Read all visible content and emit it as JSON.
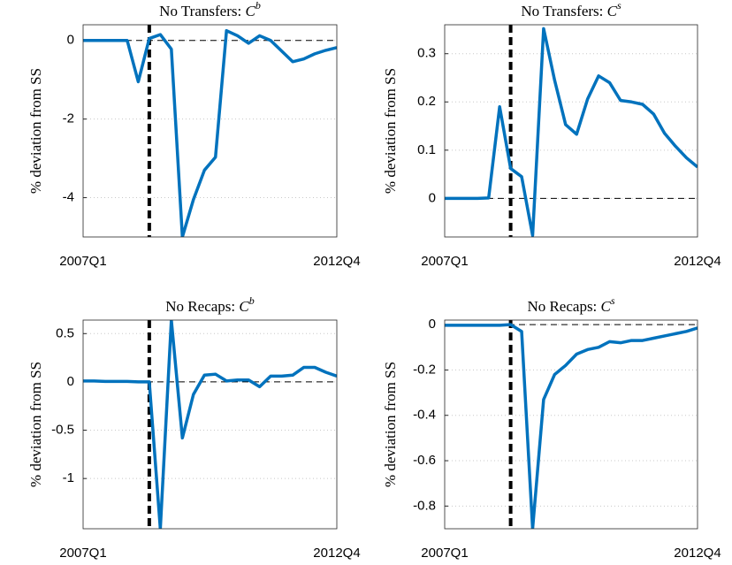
{
  "chart_data": [
    {
      "type": "line",
      "title": [
        "No Transfers: ",
        "C",
        "b"
      ],
      "ylabel": "% deviation from SS",
      "categories": [
        "2007Q1",
        null,
        null,
        null,
        null,
        null,
        null,
        null,
        null,
        null,
        null,
        null,
        null,
        null,
        null,
        null,
        null,
        null,
        null,
        null,
        null,
        null,
        null,
        "2012Q4"
      ],
      "series": [
        {
          "color": "#0072bd",
          "values": [
            0,
            0,
            0,
            0,
            0,
            -1.05,
            0.05,
            0.15,
            -0.22,
            -5,
            -4.05,
            -3.3,
            -2.97,
            0.25,
            0.12,
            -0.07,
            0.12,
            0,
            -0.27,
            -0.54,
            -0.47,
            -0.34,
            -0.25,
            -0.18
          ]
        }
      ],
      "ylim": [
        -5,
        0.4
      ],
      "yticks": [
        -4,
        -2,
        0
      ],
      "hline": 0,
      "vline": 6,
      "grid": true
    },
    {
      "type": "line",
      "title": [
        "No Transfers: ",
        "C",
        "s"
      ],
      "ylabel": "% deviation from SS",
      "categories": [
        "2007Q1",
        null,
        null,
        null,
        null,
        null,
        null,
        null,
        null,
        null,
        null,
        null,
        null,
        null,
        null,
        null,
        null,
        null,
        null,
        null,
        null,
        null,
        null,
        "2012Q4"
      ],
      "series": [
        {
          "color": "#0072bd",
          "values": [
            0,
            0,
            0,
            0,
            0.001,
            0.19,
            0.062,
            0.045,
            -0.077,
            0.352,
            0.245,
            0.153,
            0.133,
            0.206,
            0.254,
            0.24,
            0.203,
            0.2,
            0.195,
            0.175,
            0.135,
            0.108,
            0.084,
            0.065
          ]
        }
      ],
      "ylim": [
        -0.08,
        0.36
      ],
      "yticks": [
        0,
        0.1,
        0.2,
        0.3
      ],
      "hline": 0,
      "vline": 6,
      "grid": true
    },
    {
      "type": "line",
      "title": [
        "No Recaps: ",
        "C",
        "b"
      ],
      "ylabel": "% deviation from SS",
      "categories": [
        "2007Q1",
        null,
        null,
        null,
        null,
        null,
        null,
        null,
        null,
        null,
        null,
        null,
        null,
        null,
        null,
        null,
        null,
        null,
        null,
        null,
        null,
        null,
        null,
        "2012Q4"
      ],
      "series": [
        {
          "color": "#0072bd",
          "values": [
            0.01,
            0.01,
            0.005,
            0.005,
            0.005,
            0,
            0,
            -1.52,
            0.64,
            -0.58,
            -0.13,
            0.07,
            0.08,
            0.01,
            0.02,
            0.02,
            -0.05,
            0.06,
            0.06,
            0.07,
            0.15,
            0.15,
            0.1,
            0.06
          ]
        }
      ],
      "ylim": [
        -1.52,
        0.64
      ],
      "yticks": [
        -1,
        -0.5,
        0,
        0.5
      ],
      "hline": 0,
      "vline": 6,
      "grid": true
    },
    {
      "type": "line",
      "title": [
        "No Recaps: ",
        "C",
        "s"
      ],
      "ylabel": "% deviation from SS",
      "categories": [
        "2007Q1",
        null,
        null,
        null,
        null,
        null,
        null,
        null,
        null,
        null,
        null,
        null,
        null,
        null,
        null,
        null,
        null,
        null,
        null,
        null,
        null,
        null,
        null,
        "2012Q4"
      ],
      "series": [
        {
          "color": "#0072bd",
          "values": [
            -0.003,
            -0.003,
            -0.003,
            -0.003,
            -0.003,
            -0.003,
            0,
            -0.03,
            -0.9,
            -0.33,
            -0.22,
            -0.18,
            -0.13,
            -0.11,
            -0.1,
            -0.075,
            -0.08,
            -0.07,
            -0.07,
            -0.06,
            -0.05,
            -0.04,
            -0.03,
            -0.015
          ]
        }
      ],
      "ylim": [
        -0.9,
        0.02
      ],
      "yticks": [
        -0.8,
        -0.6,
        -0.4,
        -0.2,
        0
      ],
      "hline": 0,
      "vline": 6,
      "grid": true
    }
  ]
}
